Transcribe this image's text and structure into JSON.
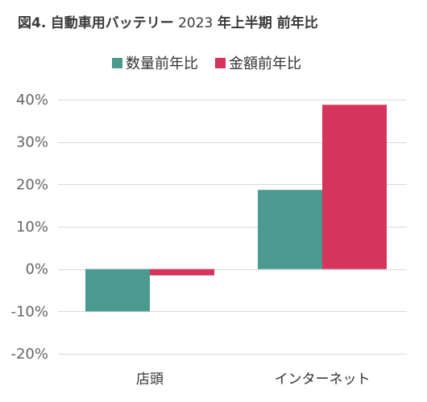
{
  "chart_data": {
    "type": "bar",
    "title_prefix": "図4.",
    "title_main": "自動車用バッテリー",
    "title_year": "2023",
    "title_suffix": "年上半期 前年比",
    "categories": [
      "店頭",
      "インターネット"
    ],
    "series": [
      {
        "name": "数量前年比",
        "color": "#4a9a8f",
        "values": [
          -10,
          18.7
        ]
      },
      {
        "name": "金額前年比",
        "color": "#d5345c",
        "values": [
          -1.5,
          38.8
        ]
      }
    ],
    "ylim": [
      -20,
      40
    ],
    "yticks": [
      40,
      30,
      20,
      10,
      0,
      -10,
      -20
    ],
    "ytick_labels": [
      "40%",
      "30%",
      "20%",
      "10%",
      "0%",
      "-10%",
      "-20%"
    ],
    "grid": true,
    "legend_position": "top-center",
    "gridline_color": "#d9d9d9"
  }
}
